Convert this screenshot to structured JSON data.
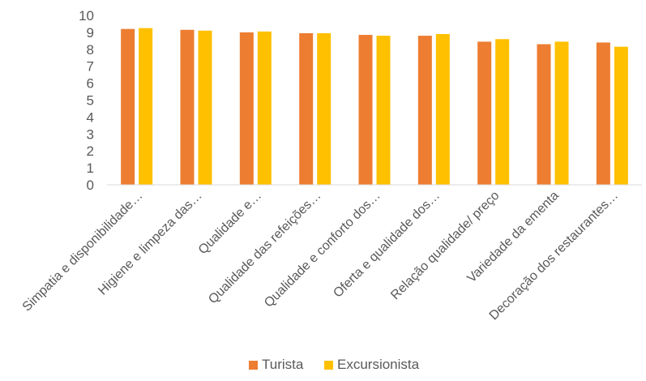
{
  "chart_data": {
    "type": "bar",
    "categories": [
      "Simpatia e disponibilidade…",
      "Higiene e limpeza das…",
      "Qualidade e…",
      "Qualidade das refeições…",
      "Qualidade e conforto dos…",
      "Oferta e qualidade dos…",
      "Relação qualidade/ preço",
      "Variedade da ementa",
      "Decoração dos restaurantes…"
    ],
    "series": [
      {
        "name": "Turista",
        "color": "#ED7D31",
        "values": [
          9.2,
          9.15,
          9.0,
          8.95,
          8.85,
          8.8,
          8.45,
          8.3,
          8.4
        ]
      },
      {
        "name": "Excursionista",
        "color": "#FFC000",
        "values": [
          9.25,
          9.1,
          9.05,
          8.95,
          8.8,
          8.9,
          8.6,
          8.45,
          8.15
        ]
      }
    ],
    "ylim": [
      0,
      10
    ],
    "yticks": [
      "0",
      "1",
      "2",
      "3",
      "4",
      "5",
      "6",
      "7",
      "8",
      "9",
      "10"
    ],
    "legend": "bottom-center",
    "grid": false
  }
}
